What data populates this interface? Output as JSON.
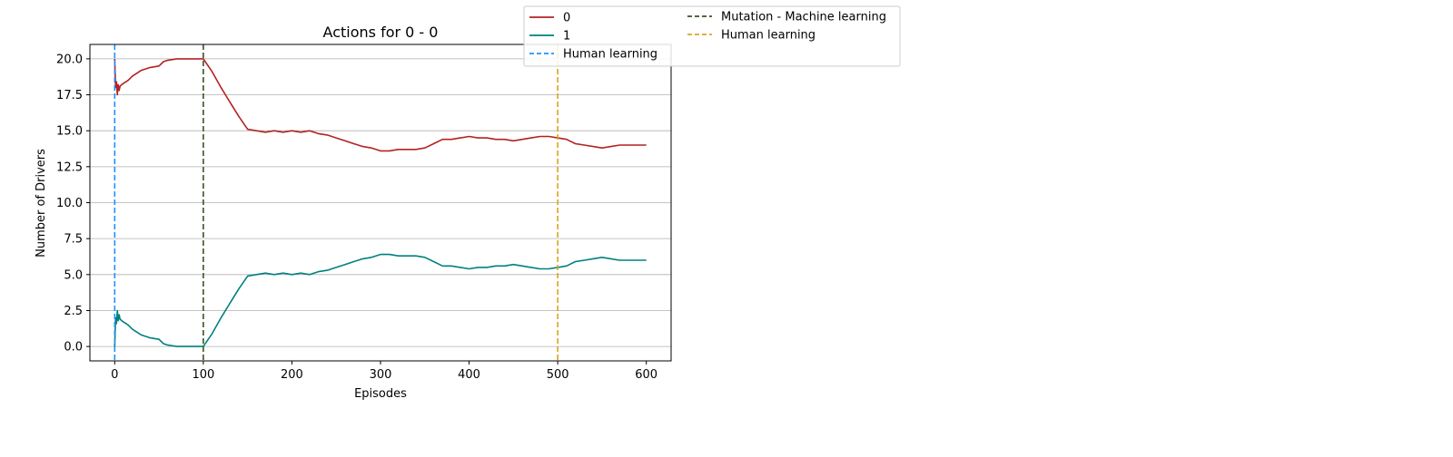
{
  "chart_data": {
    "type": "line",
    "title": "Actions for 0 - 0",
    "xlabel": "Episodes",
    "ylabel": "Number of Drivers",
    "xlim": [
      -28,
      628
    ],
    "ylim": [
      -1.0,
      21.0
    ],
    "xticks": [
      0,
      100,
      200,
      300,
      400,
      500,
      600
    ],
    "yticks": [
      0.0,
      2.5,
      5.0,
      7.5,
      10.0,
      12.5,
      15.0,
      17.5,
      20.0
    ],
    "grid": "horizontal",
    "legend_position": "top-center",
    "series": [
      {
        "name": "0",
        "color": "#b22222",
        "x": [
          0,
          1,
          2,
          3,
          4,
          5,
          6,
          8,
          10,
          15,
          20,
          30,
          40,
          50,
          55,
          60,
          70,
          80,
          90,
          100,
          110,
          120,
          130,
          140,
          150,
          160,
          170,
          180,
          190,
          200,
          210,
          220,
          230,
          240,
          250,
          260,
          270,
          280,
          290,
          300,
          310,
          320,
          330,
          340,
          350,
          360,
          370,
          380,
          390,
          400,
          410,
          420,
          430,
          440,
          450,
          460,
          470,
          480,
          490,
          500,
          510,
          520,
          530,
          540,
          550,
          560,
          570,
          580,
          590,
          600
        ],
        "values": [
          20.0,
          18.0,
          18.4,
          17.5,
          18.2,
          17.8,
          18.1,
          18.2,
          18.3,
          18.5,
          18.8,
          19.2,
          19.4,
          19.5,
          19.8,
          19.9,
          20.0,
          20.0,
          20.0,
          20.0,
          19.1,
          18.0,
          17.0,
          16.0,
          15.1,
          15.0,
          14.9,
          15.0,
          14.9,
          15.0,
          14.9,
          15.0,
          14.8,
          14.7,
          14.5,
          14.3,
          14.1,
          13.9,
          13.8,
          13.6,
          13.6,
          13.7,
          13.7,
          13.7,
          13.8,
          14.1,
          14.4,
          14.4,
          14.5,
          14.6,
          14.5,
          14.5,
          14.4,
          14.4,
          14.3,
          14.4,
          14.5,
          14.6,
          14.6,
          14.5,
          14.4,
          14.1,
          14.0,
          13.9,
          13.8,
          13.9,
          14.0,
          14.0,
          14.0,
          14.0
        ]
      },
      {
        "name": "1",
        "color": "#008080",
        "x": [
          0,
          1,
          2,
          3,
          4,
          5,
          6,
          8,
          10,
          15,
          20,
          30,
          40,
          50,
          55,
          60,
          70,
          80,
          90,
          100,
          110,
          120,
          130,
          140,
          150,
          160,
          170,
          180,
          190,
          200,
          210,
          220,
          230,
          240,
          250,
          260,
          270,
          280,
          290,
          300,
          310,
          320,
          330,
          340,
          350,
          360,
          370,
          380,
          390,
          400,
          410,
          420,
          430,
          440,
          450,
          460,
          470,
          480,
          490,
          500,
          510,
          520,
          530,
          540,
          550,
          560,
          570,
          580,
          590,
          600
        ],
        "values": [
          0.0,
          2.0,
          1.6,
          2.5,
          1.8,
          2.2,
          1.9,
          1.8,
          1.7,
          1.5,
          1.2,
          0.8,
          0.6,
          0.5,
          0.2,
          0.1,
          0.0,
          0.0,
          0.0,
          0.0,
          0.9,
          2.0,
          3.0,
          4.0,
          4.9,
          5.0,
          5.1,
          5.0,
          5.1,
          5.0,
          5.1,
          5.0,
          5.2,
          5.3,
          5.5,
          5.7,
          5.9,
          6.1,
          6.2,
          6.4,
          6.4,
          6.3,
          6.3,
          6.3,
          6.2,
          5.9,
          5.6,
          5.6,
          5.5,
          5.4,
          5.5,
          5.5,
          5.6,
          5.6,
          5.7,
          5.6,
          5.5,
          5.4,
          5.4,
          5.5,
          5.6,
          5.9,
          6.0,
          6.1,
          6.2,
          6.1,
          6.0,
          6.0,
          6.0,
          6.0
        ]
      }
    ],
    "vlines": [
      {
        "name": "Human learning",
        "x": 0,
        "color": "#1e90ff",
        "style": "dashed"
      },
      {
        "name": "Mutation - Machine learning",
        "x": 100,
        "color": "#3b5323",
        "style": "dashed"
      },
      {
        "name": "Human learning",
        "x": 500,
        "color": "#daa520",
        "style": "dashed"
      }
    ],
    "legend": [
      {
        "label": "0",
        "color": "#b22222",
        "style": "solid"
      },
      {
        "label": "1",
        "color": "#008080",
        "style": "solid"
      },
      {
        "label": "Human learning",
        "color": "#1e90ff",
        "style": "dashed"
      },
      {
        "label": "Mutation - Machine learning",
        "color": "#3b5323",
        "style": "dashed"
      },
      {
        "label": "Human learning",
        "color": "#daa520",
        "style": "dashed"
      }
    ]
  }
}
